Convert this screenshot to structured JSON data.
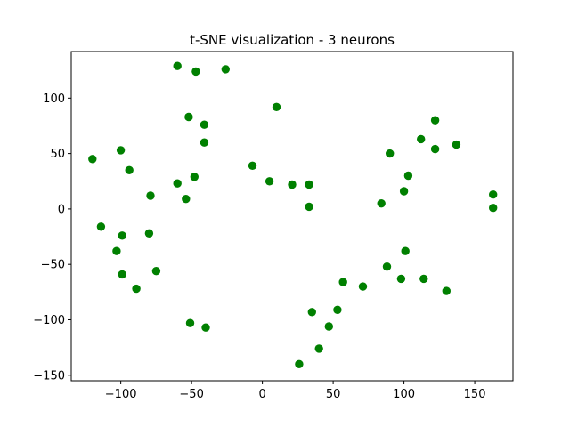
{
  "chart_data": {
    "type": "scatter",
    "title": "t-SNE visualization - 3 neurons",
    "xlabel": "",
    "ylabel": "",
    "xlim": [
      -135,
      177
    ],
    "ylim": [
      -155,
      142
    ],
    "xticks": [
      -100,
      -50,
      0,
      50,
      100,
      150
    ],
    "yticks": [
      -150,
      -100,
      -50,
      0,
      50,
      100
    ],
    "grid": false,
    "marker_color": "#008000",
    "points": [
      {
        "x": -60,
        "y": 129
      },
      {
        "x": -47,
        "y": 124
      },
      {
        "x": -26,
        "y": 126
      },
      {
        "x": 10,
        "y": 92
      },
      {
        "x": -52,
        "y": 83
      },
      {
        "x": -41,
        "y": 76
      },
      {
        "x": -41,
        "y": 60
      },
      {
        "x": -100,
        "y": 53
      },
      {
        "x": -120,
        "y": 45
      },
      {
        "x": -94,
        "y": 35
      },
      {
        "x": -7,
        "y": 39
      },
      {
        "x": -60,
        "y": 23
      },
      {
        "x": -48,
        "y": 29
      },
      {
        "x": -79,
        "y": 12
      },
      {
        "x": -54,
        "y": 9
      },
      {
        "x": 5,
        "y": 25
      },
      {
        "x": 21,
        "y": 22
      },
      {
        "x": 33,
        "y": 22
      },
      {
        "x": 33,
        "y": 2
      },
      {
        "x": -114,
        "y": -16
      },
      {
        "x": -99,
        "y": -24
      },
      {
        "x": -80,
        "y": -22
      },
      {
        "x": -103,
        "y": -38
      },
      {
        "x": -99,
        "y": -59
      },
      {
        "x": -75,
        "y": -56
      },
      {
        "x": -89,
        "y": -72
      },
      {
        "x": -51,
        "y": -103
      },
      {
        "x": -40,
        "y": -107
      },
      {
        "x": 122,
        "y": 80
      },
      {
        "x": 112,
        "y": 63
      },
      {
        "x": 122,
        "y": 54
      },
      {
        "x": 137,
        "y": 58
      },
      {
        "x": 90,
        "y": 50
      },
      {
        "x": 103,
        "y": 30
      },
      {
        "x": 100,
        "y": 16
      },
      {
        "x": 84,
        "y": 5
      },
      {
        "x": 163,
        "y": 13
      },
      {
        "x": 163,
        "y": 1
      },
      {
        "x": 101,
        "y": -38
      },
      {
        "x": 88,
        "y": -52
      },
      {
        "x": 98,
        "y": -63
      },
      {
        "x": 114,
        "y": -63
      },
      {
        "x": 130,
        "y": -74
      },
      {
        "x": 57,
        "y": -66
      },
      {
        "x": 71,
        "y": -70
      },
      {
        "x": 35,
        "y": -93
      },
      {
        "x": 53,
        "y": -91
      },
      {
        "x": 47,
        "y": -106
      },
      {
        "x": 40,
        "y": -126
      },
      {
        "x": 26,
        "y": -140
      }
    ]
  }
}
